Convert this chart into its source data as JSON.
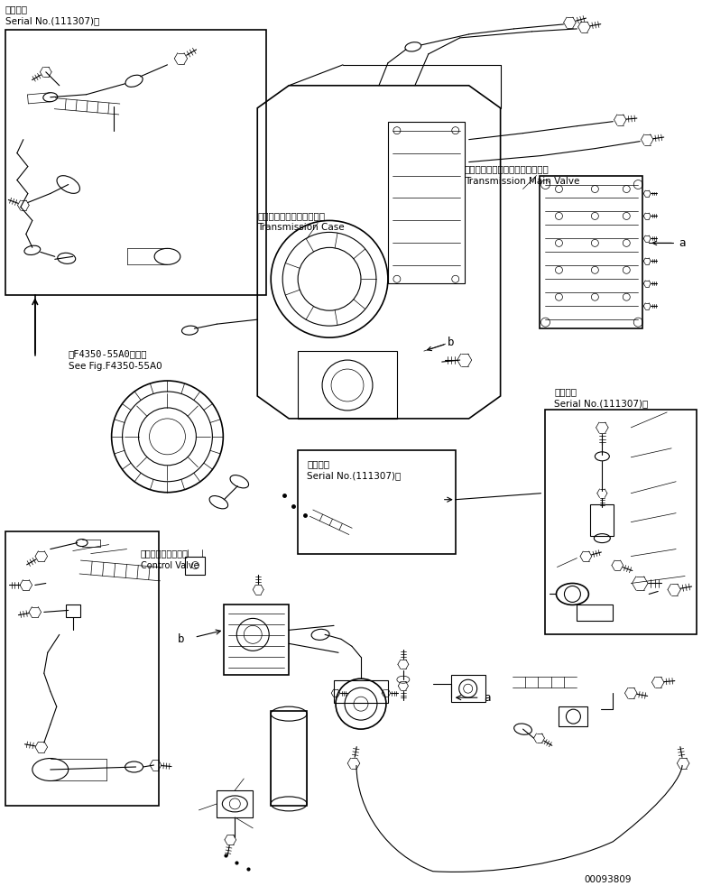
{
  "background_color": "#ffffff",
  "line_color": "#000000",
  "fig_width": 7.78,
  "fig_height": 9.82,
  "dpi": 100,
  "part_number": "00093809",
  "labels": {
    "top_left_jp": "適用号機",
    "top_left_serial": "Serial No.(111307)～",
    "trans_case_jp": "トランスミッションケース",
    "trans_case_en": "Transmission Case",
    "trans_valve_jp": "トランスミッションメインバルブ",
    "trans_valve_en": "Transmission Main Valve",
    "see_fig_jp": "第F4350-55A0図参照",
    "see_fig_en": "See Fig.F4350-55A0",
    "control_valve_jp": "コントロールバルブ",
    "control_valve_en": "Control Valve",
    "serial_mid_jp": "適用号機",
    "serial_mid_en": "Serial No.(111307)～",
    "serial_right_jp": "適用号機",
    "serial_right_en": "Serial No.(111307)～"
  }
}
